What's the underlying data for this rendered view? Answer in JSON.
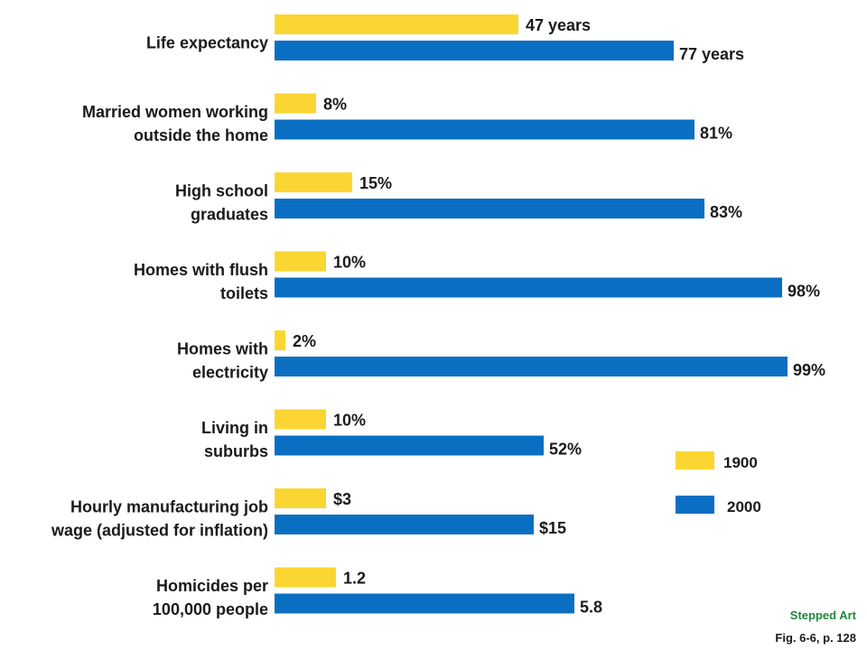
{
  "chart_data": {
    "type": "bar",
    "orientation": "horizontal",
    "colors": {
      "1900": "#fbd632",
      "2000": "#0a6fc2"
    },
    "legend": {
      "position": "right",
      "entries": [
        "1900",
        "2000"
      ]
    },
    "categories": [
      {
        "label_lines": [
          "Life expectancy"
        ],
        "v1900": 47,
        "v2000": 77,
        "label1900": "47 years",
        "label2000": "77 years"
      },
      {
        "label_lines": [
          "Married women working",
          "outside the home"
        ],
        "v1900": 8,
        "v2000": 81,
        "label1900": "8%",
        "label2000": "81%"
      },
      {
        "label_lines": [
          "High school",
          "graduates"
        ],
        "v1900": 15,
        "v2000": 83,
        "label1900": "15%",
        "label2000": "83%"
      },
      {
        "label_lines": [
          "Homes with flush",
          "toilets"
        ],
        "v1900": 10,
        "v2000": 98,
        "label1900": "10%",
        "label2000": "98%"
      },
      {
        "label_lines": [
          "Homes with",
          "electricity"
        ],
        "v1900": 2,
        "v2000": 99,
        "label1900": "2%",
        "label2000": "99%"
      },
      {
        "label_lines": [
          "Living in",
          "suburbs"
        ],
        "v1900": 10,
        "v2000": 52,
        "label1900": "10%",
        "label2000": "52%"
      },
      {
        "label_lines": [
          "Hourly manufacturing job",
          "wage (adjusted for inflation)"
        ],
        "v1900": 3,
        "v2000": 15,
        "label1900": "$3",
        "label2000": "$15"
      },
      {
        "label_lines": [
          "Homicides per",
          "100,000 people"
        ],
        "v1900": 1.2,
        "v2000": 5.8,
        "label1900": "1.2",
        "label2000": "5.8"
      }
    ]
  },
  "notes": {
    "stepped_art": "Stepped Art",
    "stepped_art_color": "#1e8a3c",
    "caption": "Fig. 6-6, p. 128"
  }
}
